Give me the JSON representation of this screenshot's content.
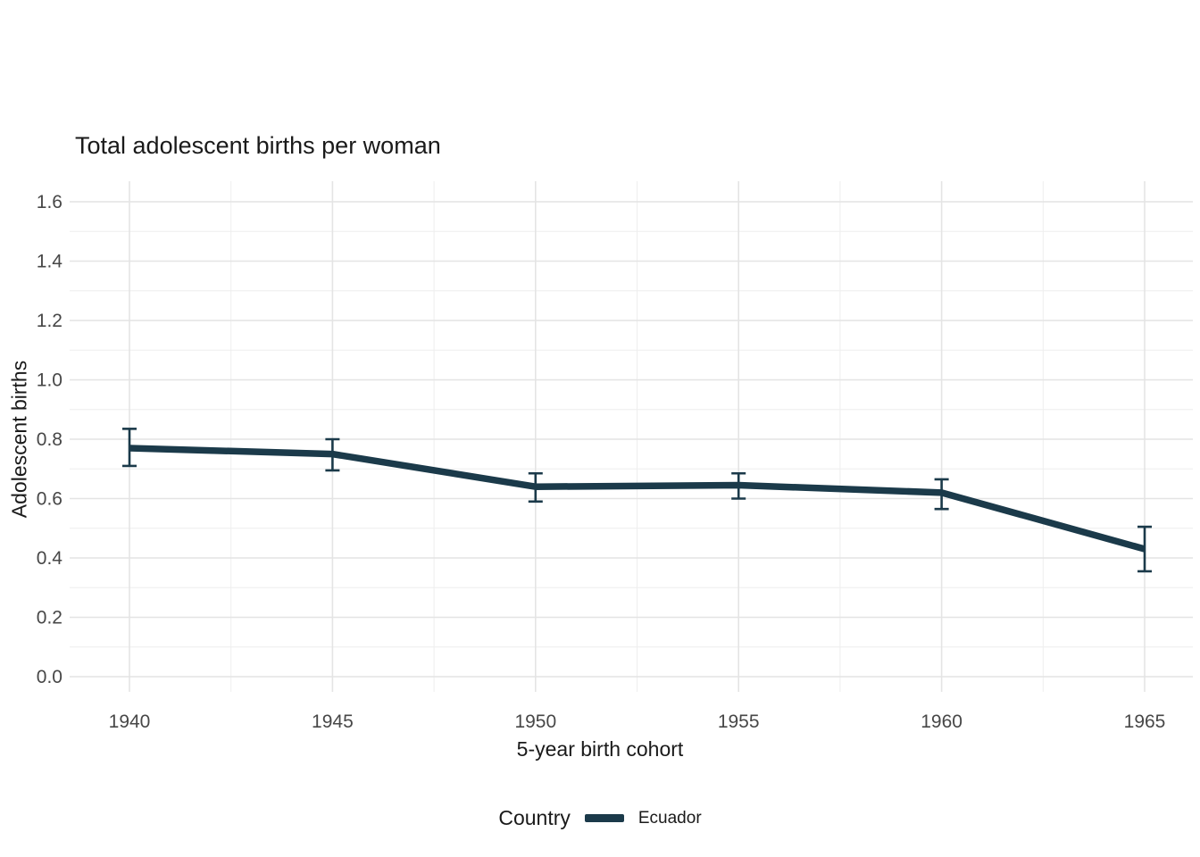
{
  "chart_data": {
    "type": "line",
    "title": "Total adolescent births per woman",
    "xlabel": "5-year birth cohort",
    "ylabel": "Adolescent births",
    "categories": [
      "1940",
      "1945",
      "1950",
      "1955",
      "1960",
      "1965"
    ],
    "y_ticks": [
      "0.0",
      "0.2",
      "0.4",
      "0.6",
      "0.8",
      "1.0",
      "1.2",
      "1.4",
      "1.6"
    ],
    "ylim": [
      0,
      1.6
    ],
    "grid": true,
    "legend_position": "bottom",
    "legend_title": "Country",
    "series": [
      {
        "name": "Ecuador",
        "color": "#1b3a4a",
        "values": [
          0.77,
          0.75,
          0.64,
          0.645,
          0.62,
          0.43
        ],
        "error_low": [
          0.71,
          0.695,
          0.59,
          0.6,
          0.565,
          0.355
        ],
        "error_high": [
          0.835,
          0.8,
          0.685,
          0.685,
          0.665,
          0.505
        ]
      }
    ],
    "colors": {
      "grid_major": "#e4e4e4",
      "grid_minor": "#eeeeee",
      "tick_text": "#474747",
      "title_text": "#1a1a1a"
    }
  }
}
